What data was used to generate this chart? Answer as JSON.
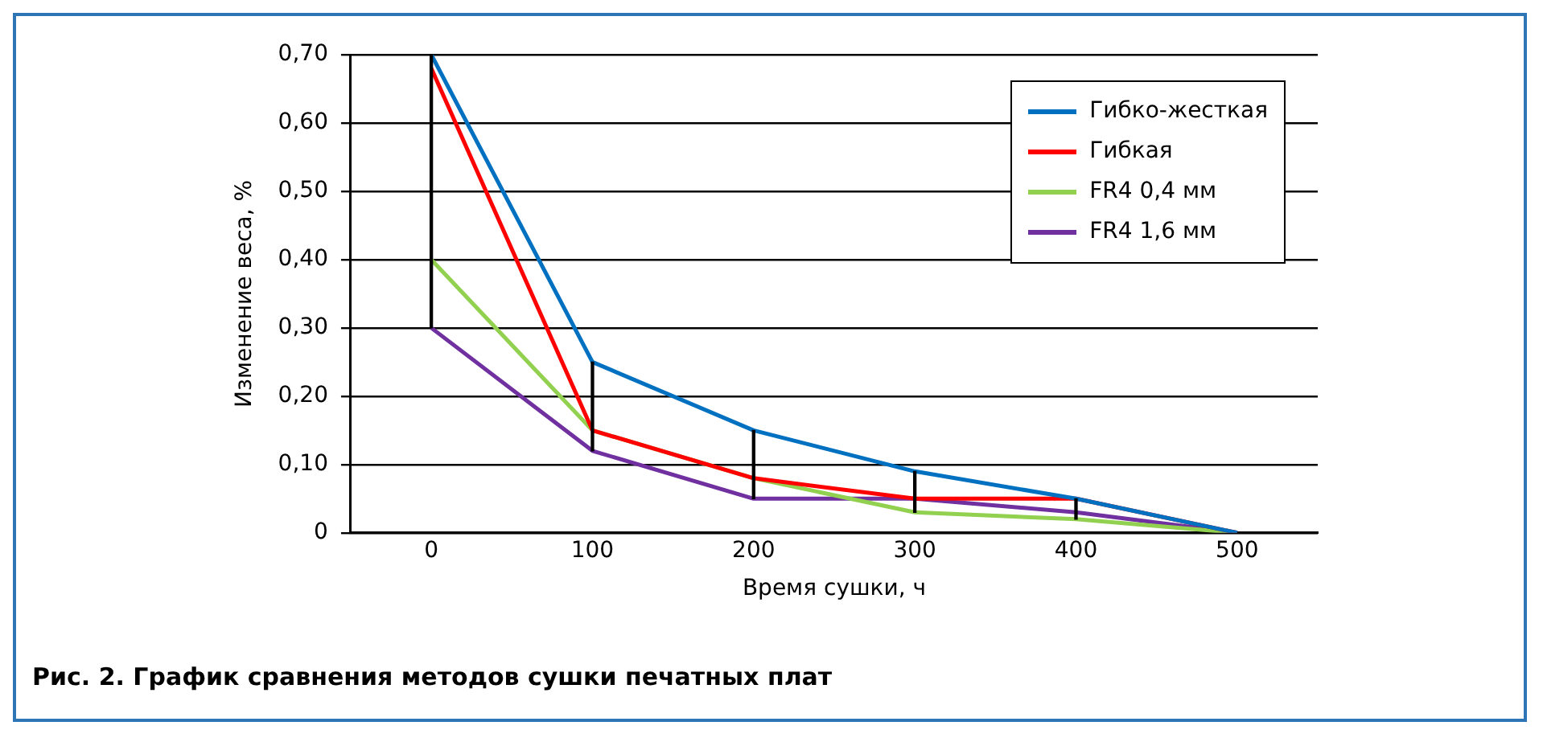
{
  "chart_data": {
    "type": "line",
    "xlabel": "Время сушки, ч",
    "ylabel": "Изменение веса, %",
    "x": [
      0,
      100,
      200,
      300,
      400,
      500
    ],
    "series": [
      {
        "name": "Гибко-жесткая",
        "color": "#0070c0",
        "values": [
          0.7,
          0.25,
          0.15,
          0.09,
          0.05,
          0
        ]
      },
      {
        "name": "Гибкая",
        "color": "#ff0000",
        "values": [
          0.68,
          0.15,
          0.08,
          0.05,
          0.05,
          0
        ]
      },
      {
        "name": "FR4 0,4 мм",
        "color": "#92d050",
        "values": [
          0.4,
          0.15,
          0.08,
          0.03,
          0.02,
          0
        ]
      },
      {
        "name": "FR4 1,6 мм",
        "color": "#7030a0",
        "values": [
          0.3,
          0.12,
          0.05,
          0.05,
          0.03,
          0
        ]
      },
      {
        "type": "bar",
        "color": "#000000",
        "x": [
          0,
          100,
          200,
          300,
          400
        ],
        "base": [
          0.3,
          0.12,
          0.05,
          0.03,
          0.02
        ],
        "values": [
          0.4,
          0.13,
          0.1,
          0.06,
          0.03
        ]
      }
    ],
    "xlim": [
      -50,
      550
    ],
    "xticks": [
      0,
      100,
      200,
      300,
      400,
      500
    ],
    "ylim": [
      0,
      0.7
    ],
    "yticks": [
      0,
      {
        "value": 0.1,
        "label": "0,10"
      },
      {
        "value": 0.2,
        "label": "0,20"
      },
      {
        "value": 0.3,
        "label": "0,30"
      },
      {
        "value": 0.4,
        "label": "0,40"
      },
      {
        "value": 0.5,
        "label": "0,50"
      },
      {
        "value": 0.6,
        "label": "0,60"
      },
      {
        "value": 0.7,
        "label": "0,70"
      }
    ],
    "grid": "y",
    "legend": "top right",
    "marker": "none",
    "line_style": "solid",
    "annotations": [
      "Рис. 2. График сравнения методов сушки печатных плат"
    ]
  }
}
